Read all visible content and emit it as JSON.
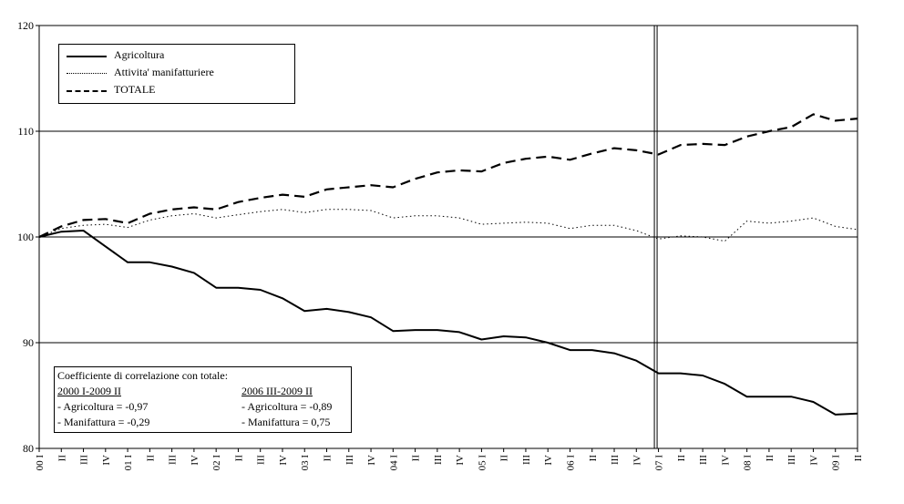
{
  "chart_data": {
    "type": "line",
    "ylim": [
      80,
      120
    ],
    "yticks": [
      80,
      90,
      100,
      110,
      120
    ],
    "grid": true,
    "x": [
      "00 I",
      "II",
      "III",
      "IV",
      "01 I",
      "II",
      "III",
      "IV",
      "02 I",
      "II",
      "III",
      "IV",
      "03 I",
      "II",
      "III",
      "IV",
      "04 I",
      "II",
      "III",
      "IV",
      "05 I",
      "II",
      "III",
      "IV",
      "06 I",
      "II",
      "III",
      "IV",
      "07 I",
      "II",
      "III",
      "IV",
      "08 I",
      "II",
      "III",
      "IV",
      "09 I",
      "II"
    ],
    "vertical_marker_after": "IV",
    "series": [
      {
        "name": "Agricoltura",
        "style": "solid",
        "color": "#000000",
        "values": [
          100.0,
          100.5,
          100.6,
          99.1,
          97.6,
          97.6,
          97.2,
          96.6,
          95.2,
          95.2,
          95.0,
          94.2,
          93.0,
          93.2,
          92.9,
          92.4,
          91.1,
          91.2,
          91.2,
          91.0,
          90.3,
          90.6,
          90.5,
          90.0,
          89.3,
          89.3,
          89.0,
          88.3,
          87.1,
          87.1,
          86.9,
          86.1,
          84.9,
          84.9,
          84.9,
          84.4,
          83.2,
          83.3
        ]
      },
      {
        "name": "Attivita' manifatturiere",
        "style": "dotted",
        "color": "#000000",
        "values": [
          100.0,
          100.8,
          101.1,
          101.2,
          100.9,
          101.6,
          102.0,
          102.2,
          101.8,
          102.1,
          102.4,
          102.6,
          102.3,
          102.6,
          102.6,
          102.5,
          101.8,
          102.0,
          102.0,
          101.8,
          101.2,
          101.3,
          101.4,
          101.3,
          100.8,
          101.1,
          101.1,
          100.6,
          99.8,
          100.1,
          100.0,
          99.6,
          101.5,
          101.3,
          101.5,
          101.8,
          101.0,
          100.7
        ]
      },
      {
        "name": "TOTALE",
        "style": "dashed",
        "color": "#000000",
        "values": [
          100.0,
          101.0,
          101.6,
          101.7,
          101.3,
          102.2,
          102.6,
          102.8,
          102.6,
          103.3,
          103.7,
          104.0,
          103.8,
          104.5,
          104.7,
          104.9,
          104.7,
          105.5,
          106.1,
          106.3,
          106.2,
          107.0,
          107.4,
          107.6,
          107.3,
          107.9,
          108.4,
          108.2,
          107.8,
          108.7,
          108.8,
          108.7,
          109.5,
          110.0,
          110.4,
          111.6,
          111.0,
          111.2
        ]
      }
    ]
  },
  "correlation_box": {
    "title": "Coefficiente di correlazione con totale:",
    "period_1": "2000 I-2009 II",
    "period_1_agri": "- Agricoltura = -0,97",
    "period_1_manif": "- Manifattura = -0,29",
    "period_2": "2006 III-2009 II",
    "period_2_agri": "- Agricoltura = -0,89",
    "period_2_manif": "- Manifattura = 0,75"
  }
}
